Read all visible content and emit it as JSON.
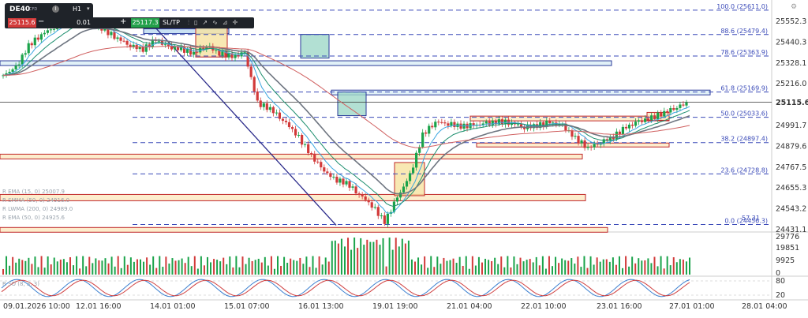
{
  "toolbar": {
    "symbol": "DE40",
    "symbol_sub": "CFD",
    "info_icon": "info-icon",
    "timeframe": "H1",
    "sell_price": "25115.6",
    "quantity": "0.01",
    "buy_price": "25117.3",
    "sltp_label": "SL/TP",
    "tools": [
      "indicators-icon",
      "candles-icon",
      "drawing-icon",
      "fib-icon",
      "measure-icon",
      "crosshair-icon"
    ],
    "settings_icon": "gear-icon"
  },
  "colors": {
    "up": "#1aa34a",
    "down": "#d23a3a",
    "fib": "#3a4ab8",
    "ema_fast": "#3aa6e0",
    "ema_slow": "#1e8f6f",
    "ema_mid": "#6e7580",
    "sma_long": "#d06060",
    "current_price": "#333333"
  },
  "chart_data": {
    "type": "candlestick",
    "symbol": "DE40",
    "timeframe": "H1",
    "current_price": 25115.6,
    "price_axis_ticks": [
      "25552.3",
      "25440.3",
      "25328.1",
      "25216.0",
      "25115.6",
      "24991.7",
      "24879.6",
      "24767.5",
      "24655.3",
      "24543.2",
      "24431.1"
    ],
    "price_range": [
      24420,
      25640
    ],
    "time_axis_ticks": [
      "09.01.2026 10:00",
      "12.01 16:00",
      "14.01 01:00",
      "15.01 07:00",
      "16.01 13:00",
      "19.01 19:00",
      "21.01 04:00",
      "22.01 10:00",
      "23.01 16:00",
      "27.01 01:00",
      "28.01 04:00"
    ],
    "fibonacci": [
      {
        "label": "100.0 (25611.0)",
        "price": 25611.0
      },
      {
        "label": "88.6 (25479.4)",
        "price": 25479.4
      },
      {
        "label": "78.6 (25363.9)",
        "price": 25363.9
      },
      {
        "label": "61.8 (25169.9)",
        "price": 25169.9
      },
      {
        "label": "50.0 (25033.6)",
        "price": 25033.6
      },
      {
        "label": "38.2 (24897.4)",
        "price": 24897.4
      },
      {
        "label": "23.6 (24728.8)",
        "price": 24728.8
      },
      {
        "label": "0.0 (24456.3)",
        "price": 24456.3
      }
    ],
    "fib_partial_label": "57.31",
    "close_path": [
      25260,
      25300,
      25420,
      25480,
      25520,
      25560,
      25600,
      25540,
      25500,
      25460,
      25420,
      25400,
      25450,
      25410,
      25400,
      25380,
      25420,
      25380,
      25360,
      25380,
      25110,
      25080,
      25020,
      24950,
      24850,
      24760,
      24700,
      24680,
      24620,
      24560,
      24470,
      24600,
      24720,
      24940,
      25010,
      25000,
      24985,
      24990,
      25000,
      25010,
      25005,
      24980,
      24990,
      25005,
      24990,
      24920,
      24870,
      24900,
      24930,
      24980,
      25010,
      25030,
      25060,
      25090,
      25115
    ],
    "indicators_legend": [
      "R EMA (15, 0) 25007.9",
      "R SMMA (50, 0) 24916.0",
      "R LWMA (200, 0) 24989.0",
      "R EMA (50, 0) 24925.6"
    ],
    "volume_axis_ticks": [
      "29776",
      "19851",
      "9925",
      "0"
    ],
    "oscillator_axis_ticks": [
      "80",
      "20"
    ],
    "oscillator_label": "R SO (8, 3, 3)"
  }
}
